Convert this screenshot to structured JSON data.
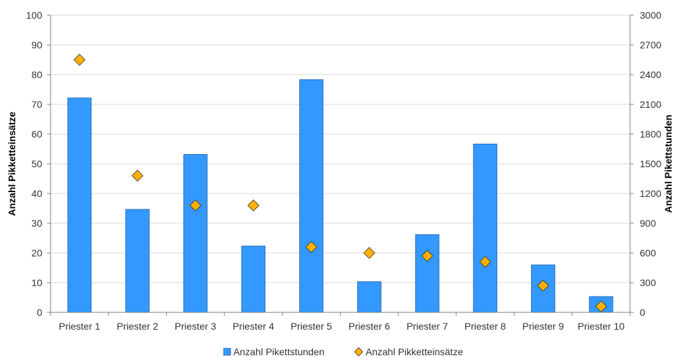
{
  "chart_data": {
    "type": "bar",
    "categories": [
      "Priester 1",
      "Priester 2",
      "Priester 3",
      "Priester 4",
      "Priester 5",
      "Priester 6",
      "Priester 7",
      "Priester 8",
      "Priester 9",
      "Priester 10"
    ],
    "series": [
      {
        "name": "Anzahl Pikettstunden",
        "type": "bar",
        "axis": "right",
        "color": "#3399FF",
        "values": [
          2165,
          1040,
          1595,
          670,
          2350,
          310,
          785,
          1700,
          480,
          160
        ]
      },
      {
        "name": "Anzahl Pikketteinsätze",
        "type": "scatter",
        "marker": "diamond",
        "axis": "left",
        "color": "#FFB000",
        "values": [
          85,
          46,
          36,
          36,
          22,
          20,
          19,
          17,
          9,
          2
        ]
      }
    ],
    "ylabel": "Anzahl Pikketteinsätze",
    "ylabel_right": "Anzahl Pikettstunden",
    "ylim": [
      0,
      100
    ],
    "ylim_right": [
      0,
      3000
    ],
    "yticks": [
      0,
      10,
      20,
      30,
      40,
      50,
      60,
      70,
      80,
      90,
      100
    ],
    "yticks_right": [
      0,
      300,
      600,
      900,
      1200,
      1500,
      1800,
      2100,
      2400,
      2700,
      3000
    ],
    "grid": true,
    "legend": "bottom"
  }
}
